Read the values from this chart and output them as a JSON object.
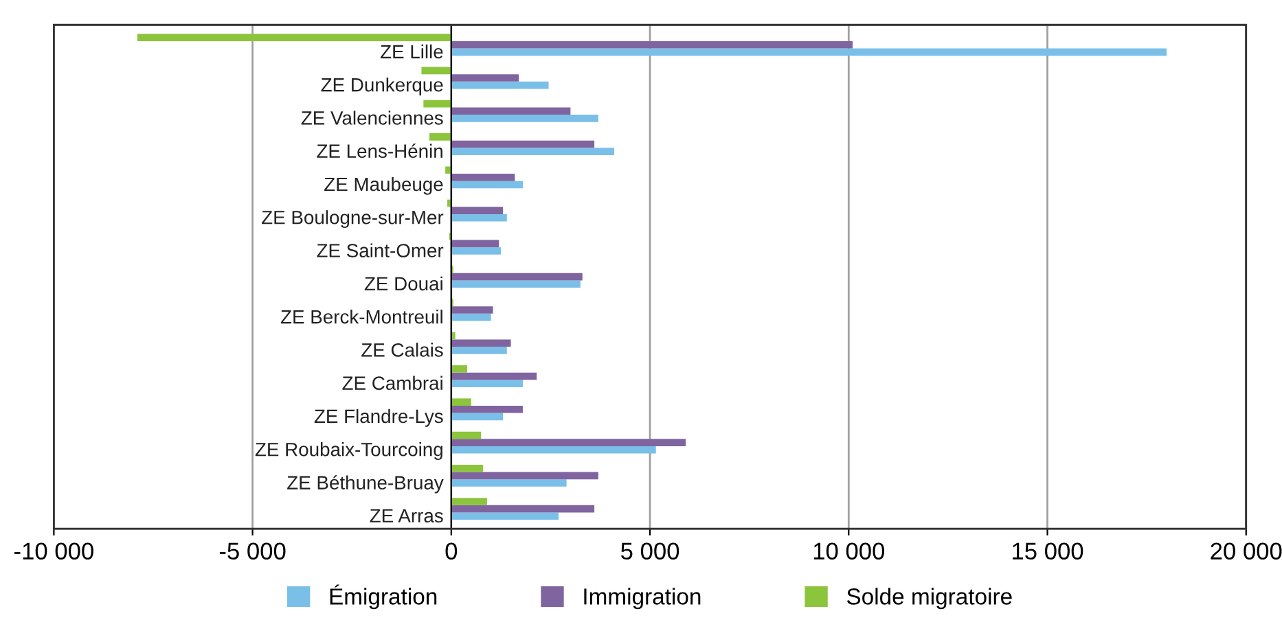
{
  "chart_data": {
    "type": "bar",
    "orientation": "horizontal",
    "categories": [
      "ZE Lille",
      "ZE Dunkerque",
      "ZE Valenciennes",
      "ZE Lens-Hénin",
      "ZE Maubeuge",
      "ZE Boulogne-sur-Mer",
      "ZE Saint-Omer",
      "ZE Douai",
      "ZE Berck-Montreuil",
      "ZE Calais",
      "ZE Cambrai",
      "ZE Flandre-Lys",
      "ZE Roubaix-Tourcoing",
      "ZE Béthune-Bruay",
      "ZE Arras"
    ],
    "series": [
      {
        "name": "Émigration",
        "color": "#79bfe8",
        "values": [
          18000,
          2450,
          3700,
          4100,
          1800,
          1400,
          1250,
          3250,
          1000,
          1400,
          1800,
          1300,
          5150,
          2900,
          2700
        ]
      },
      {
        "name": "Immigration",
        "color": "#7f64a0",
        "values": [
          10100,
          1700,
          3000,
          3600,
          1600,
          1300,
          1200,
          3300,
          1050,
          1500,
          2150,
          1800,
          5900,
          3700,
          3600
        ]
      },
      {
        "name": "Solde migratoire",
        "color": "#8cc43c",
        "values": [
          -7900,
          -750,
          -700,
          -550,
          -150,
          -100,
          -50,
          50,
          50,
          100,
          400,
          500,
          750,
          800,
          900
        ]
      }
    ],
    "xlim": [
      -10000,
      20000
    ],
    "xticks": [
      {
        "value": -10000,
        "label": "-10 000"
      },
      {
        "value": -5000,
        "label": "-5 000"
      },
      0,
      {
        "value": 5000,
        "label": "5 000"
      },
      {
        "value": 10000,
        "label": "10 000"
      },
      {
        "value": 15000,
        "label": "15 000"
      },
      {
        "value": 20000,
        "label": "20 000"
      }
    ],
    "grid": "x",
    "legend": "bottom"
  }
}
